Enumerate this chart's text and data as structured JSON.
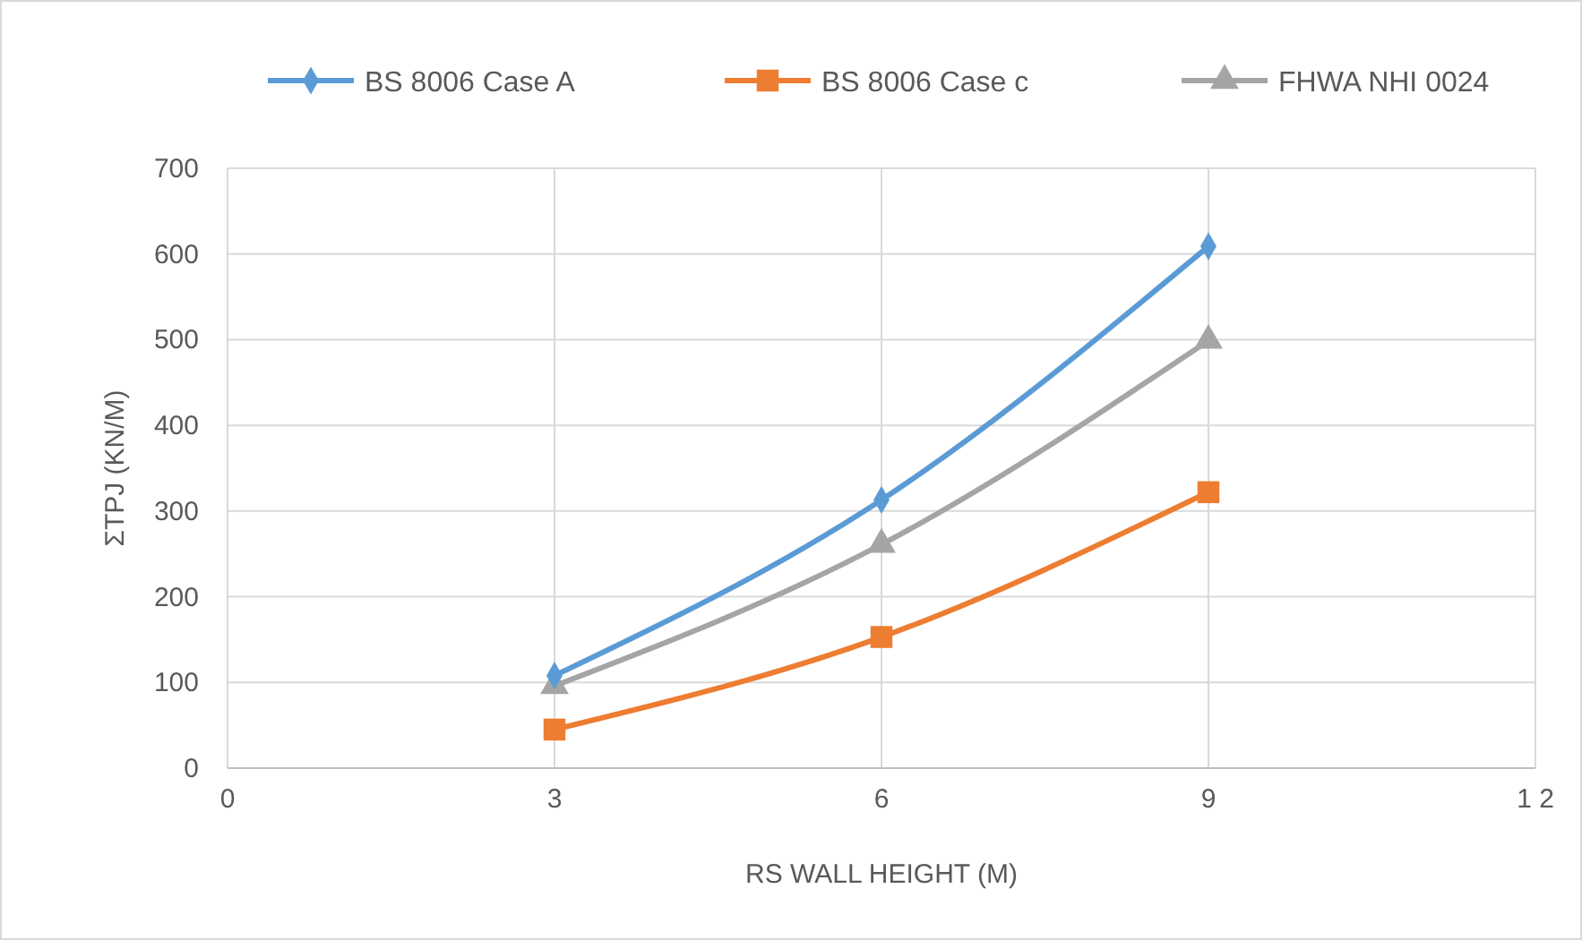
{
  "chart_data": {
    "type": "line",
    "xlabel": "RS WALL HEIGHT (M)",
    "ylabel": "ΣTPJ (KN/M)",
    "x": [
      3,
      6,
      9
    ],
    "series": [
      {
        "name": "BS 8006 Case A",
        "color": "#5b9bd5",
        "marker": "diamond",
        "values": [
          108,
          313,
          609
        ]
      },
      {
        "name": "BS 8006 Case c",
        "color": "#ed7d31",
        "marker": "square",
        "values": [
          45,
          153,
          322
        ]
      },
      {
        "name": "FHWA NHI 0024",
        "color": "#a5a5a5",
        "marker": "triangle",
        "values": [
          96,
          261,
          499
        ]
      }
    ],
    "xlim": [
      0,
      12
    ],
    "xticks": [
      0,
      3,
      6,
      9,
      {
        "value": 12,
        "label": "1 2"
      }
    ],
    "ylim": [
      0,
      700
    ],
    "yticks": [
      0,
      100,
      200,
      300,
      400,
      500,
      600,
      700
    ],
    "grid": true,
    "legend": "top"
  }
}
